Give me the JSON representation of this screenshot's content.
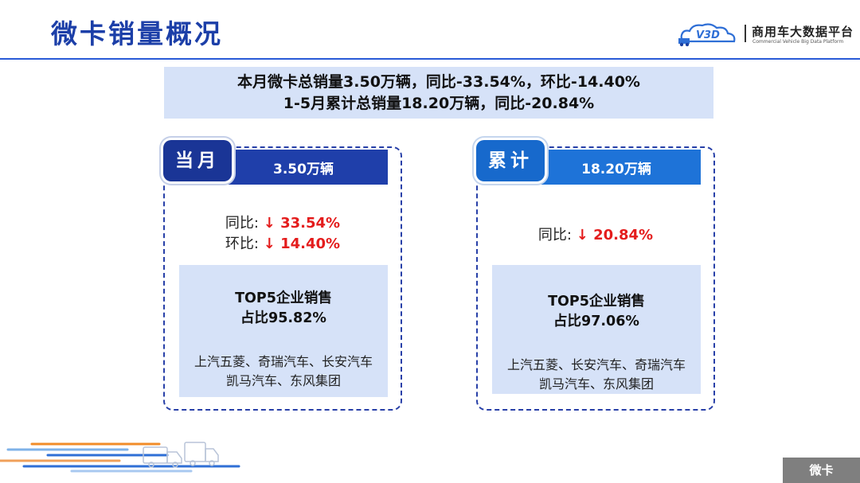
{
  "header": {
    "title": "微卡销量概况",
    "brand_name": "商用车大数据平台",
    "brand_sub": "Commercial Vehicle Big Data Platform",
    "brand_logo_text": "V3D",
    "accent_color": "#1c3fa8"
  },
  "summary": {
    "line1": "本月微卡总销量3.50万辆，同比-33.54%，环比-14.40%",
    "line2": "1-5月累计总销量18.20万辆，同比-20.84%"
  },
  "monthly": {
    "tab": "当月",
    "total": "3.50万辆",
    "yoy_label": "同比:",
    "yoy_value": "↓ 33.54%",
    "mom_label": "环比:",
    "mom_value": "↓ 14.40%",
    "top5_title": "TOP5企业销售",
    "top5_share": "占比95.82%",
    "companies_line1": "上汽五菱、奇瑞汽车、长安汽车",
    "companies_line2": "凯马汽车、东风集团"
  },
  "cumulative": {
    "tab": "累计",
    "total": "18.20万辆",
    "yoy_label": "同比:",
    "yoy_value": "↓ 20.84%",
    "top5_title": "TOP5企业销售",
    "top5_share": "占比97.06%",
    "companies_line1": "上汽五菱、长安汽车、奇瑞汽车",
    "companies_line2": "凯马汽车、东风集团"
  },
  "footer": {
    "tab": "微卡"
  }
}
